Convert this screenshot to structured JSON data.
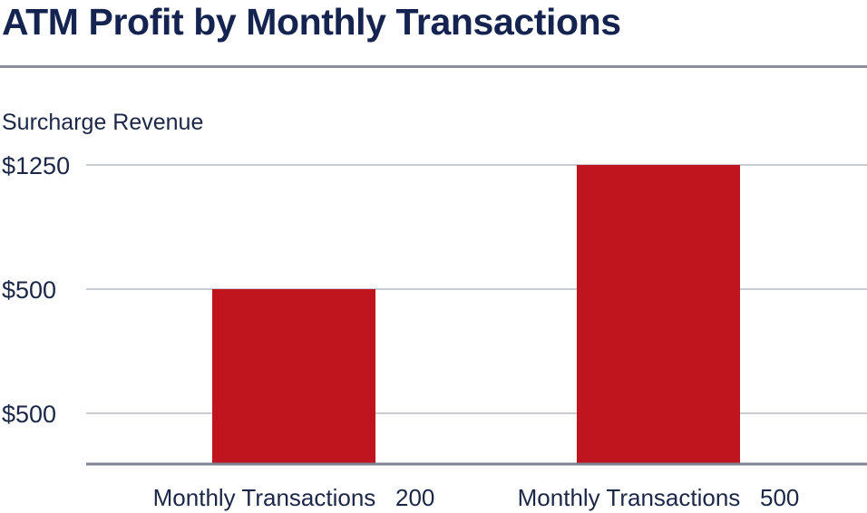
{
  "chart_data": {
    "type": "bar",
    "title": "ATM Profit by Monthly Transactions",
    "ylabel": "Surcharge Revenue",
    "xlabel": "",
    "categories": [
      "Monthly Transactions   200",
      "Monthly Transactions   500"
    ],
    "values": [
      500,
      1250
    ],
    "y_tick_labels": [
      "$1250",
      "$500",
      "$500"
    ],
    "ylim": [
      0,
      1250
    ],
    "grid": true,
    "legend": "none",
    "bar_color": "#c0141f",
    "grid_color": "#a9adb8",
    "axis_color": "#7d8290"
  }
}
